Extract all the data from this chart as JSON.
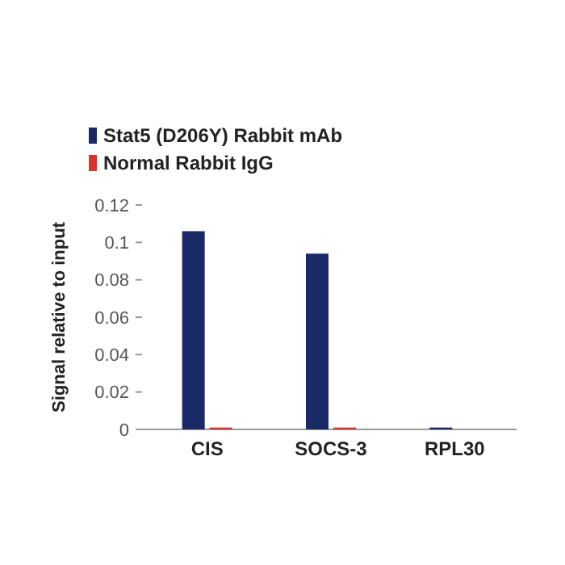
{
  "chart_data": {
    "type": "bar",
    "ylabel": "Signal relative to input",
    "categories": [
      "CIS",
      "SOCS-3",
      "RPL30"
    ],
    "series": [
      {
        "name": "Stat5 (D206Y) Rabbit mAb",
        "color": "#1a2a66",
        "values": [
          0.106,
          0.094,
          0.001
        ]
      },
      {
        "name": "Normal Rabbit IgG",
        "color": "#d8342c",
        "values": [
          0.001,
          0.001,
          0
        ]
      }
    ],
    "ylim": [
      0,
      0.12
    ],
    "yticks": [
      0,
      0.02,
      0.04,
      0.06,
      0.08,
      0.1,
      0.12
    ],
    "legend": "top left",
    "grid": false
  }
}
